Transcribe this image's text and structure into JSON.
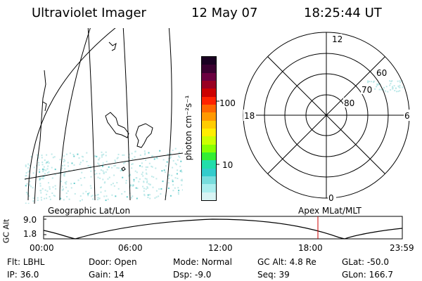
{
  "header": {
    "title": "Ultraviolet Imager",
    "date": "12 May 07",
    "time": "18:25:44 UT"
  },
  "colorbar": {
    "unit_label": "photon cm⁻²s⁻¹",
    "tick_labels": [
      "100",
      "10"
    ],
    "colors": [
      "#1a0022",
      "#3a0030",
      "#6b0040",
      "#990022",
      "#cc0000",
      "#ff2200",
      "#ff6600",
      "#ff9900",
      "#ffcc00",
      "#ffee00",
      "#ccff00",
      "#88ff00",
      "#33ee33",
      "#22ddaa",
      "#33cccc",
      "#77dddd",
      "#aaeeee",
      "#d8f4f4"
    ]
  },
  "polar_plot": {
    "mlt_labels": {
      "top": "12",
      "left": "18",
      "right": "6",
      "bottom": "0"
    },
    "lat_labels": [
      "60",
      "70",
      "80"
    ]
  },
  "timeline": {
    "axis_title": "GC Alt",
    "y_labels": [
      "9.0",
      "1.8"
    ],
    "left_caption": "Geographic Lat/Lon",
    "right_caption": "Apex MLat/MLT",
    "x_labels": [
      "00:00",
      "06:00",
      "12:00",
      "18:00",
      "23:59"
    ],
    "current_marker_color": "#cc0000"
  },
  "info": {
    "row1": [
      {
        "key": "Flt:",
        "val": "LBHL"
      },
      {
        "key": "Door:",
        "val": "Open"
      },
      {
        "key": "Mode:",
        "val": "Normal"
      },
      {
        "key": "GC Alt:",
        "val": "4.8 Re"
      },
      {
        "key": "GLat:",
        "val": "-50.0"
      }
    ],
    "row2": [
      {
        "key": "IP:",
        "val": "36.0"
      },
      {
        "key": "Gain:",
        "val": "14"
      },
      {
        "key": "Dsp:",
        "val": "-9.0"
      },
      {
        "key": "Seq:",
        "val": "39"
      },
      {
        "key": "GLon:",
        "val": "166.7"
      }
    ]
  }
}
